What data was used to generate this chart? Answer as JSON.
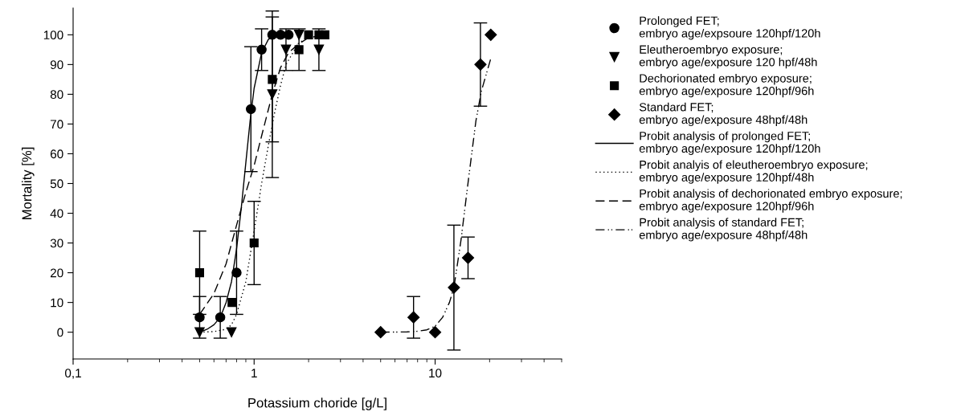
{
  "chart_data": {
    "type": "scatter",
    "xlabel": "Potassium choride [g/L]",
    "ylabel": "Mortality [%]",
    "log": "x",
    "xlim": [
      0.1,
      50
    ],
    "xticks": [
      {
        "value": 0.1,
        "label": "0,1"
      },
      1,
      10
    ],
    "ylim": [
      -9,
      109
    ],
    "yticks": [
      0,
      10,
      20,
      30,
      40,
      50,
      60,
      70,
      80,
      90,
      100
    ],
    "grid": false,
    "legend": "right",
    "series": [
      {
        "name": "Prolonged FET;\nembryo age/expsoure 120hpf/120h",
        "marker": "circle",
        "color": "#000000",
        "x": [
          0.5,
          0.65,
          0.8,
          0.96,
          1.1,
          1.26,
          1.4,
          1.55
        ],
        "values": [
          5,
          5,
          20,
          75,
          95,
          100,
          100,
          100
        ],
        "errors": [
          7,
          7,
          14,
          21,
          7,
          null,
          null,
          null
        ]
      },
      {
        "name": "Eleutheroembryo exposure;\nembryo age/exposure 120 hpf/48h",
        "marker": "triangle",
        "color": "#000000",
        "x": [
          0.5,
          0.75,
          1.26,
          1.5,
          1.77,
          2.28
        ],
        "values": [
          0,
          0,
          80,
          95,
          100,
          95
        ],
        "errors": [
          null,
          null,
          28,
          7,
          null,
          7
        ]
      },
      {
        "name": "Dechorionated embryo exposure;\nembryo age/exposure 120hpf/96h",
        "marker": "square",
        "color": "#000000",
        "x": [
          0.5,
          0.755,
          1.0,
          1.26,
          1.77,
          2.0,
          2.28,
          2.46
        ],
        "values": [
          20,
          10,
          30,
          85,
          95,
          100,
          100,
          100
        ],
        "errors": [
          14,
          null,
          14,
          21,
          7,
          null,
          null,
          null
        ]
      },
      {
        "name": "Standard FET;\nembryo age/exposure 48hpf/48h",
        "marker": "diamond",
        "color": "#000000",
        "x": [
          5,
          7.6,
          10,
          12.7,
          15.2,
          17.8,
          20.3
        ],
        "values": [
          0,
          5,
          0,
          15,
          25,
          90,
          100
        ],
        "errors": [
          null,
          7,
          null,
          21,
          7,
          14,
          null
        ]
      },
      {
        "name": "Probit analysis of prolonged FET;\nembryo age/exposure 120hpf/120h",
        "type": "line",
        "line_style": "solid",
        "color": "#000000",
        "x": [
          0.5,
          0.55,
          0.6,
          0.65,
          0.7,
          0.75,
          0.8,
          0.85,
          0.9,
          0.95,
          1.0,
          1.1,
          1.2,
          1.3,
          1.55
        ],
        "values": [
          0,
          1,
          2.5,
          5,
          10,
          17,
          28,
          42,
          57,
          71,
          82,
          94,
          98.5,
          99.6,
          100
        ]
      },
      {
        "name": "Probit analyis of eleutheroembryo exposure;\nembryo age/exposure 120hpf/48h",
        "type": "line",
        "line_style": "dotted",
        "color": "#000000",
        "x": [
          0.5,
          0.6,
          0.7,
          0.75,
          0.8,
          0.9,
          1.0,
          1.1,
          1.2,
          1.3,
          1.4,
          1.5,
          1.75,
          2.0,
          2.46
        ],
        "values": [
          0,
          0.2,
          1,
          2.5,
          6,
          17,
          34,
          50,
          63,
          74,
          83,
          90,
          97,
          99.3,
          100
        ]
      },
      {
        "name": "Probit analysis of dechorionated embryo exposure;\nembryo age/exposure 120hpf/96h",
        "type": "line",
        "line_style": "dashed",
        "color": "#000000",
        "x": [
          0.5,
          0.6,
          0.7,
          0.8,
          0.9,
          1.0,
          1.1,
          1.26,
          1.4,
          1.55,
          1.77,
          2.0,
          2.46
        ],
        "values": [
          6,
          13,
          23,
          36,
          47,
          56,
          66,
          80,
          89,
          94,
          97,
          99,
          100
        ]
      },
      {
        "name": "Probit analysis of standard FET;\nembryo age/exposure 48hpf/48h",
        "type": "line",
        "line_style": "dashdotdot",
        "color": "#000000",
        "x": [
          5,
          7,
          8,
          9,
          10,
          11,
          12,
          12.7,
          13.9,
          15.4,
          16.8,
          18,
          20.3
        ],
        "values": [
          0,
          0.1,
          0.3,
          0.8,
          2,
          5,
          10,
          15,
          31,
          53,
          71,
          81,
          92
        ]
      }
    ]
  }
}
